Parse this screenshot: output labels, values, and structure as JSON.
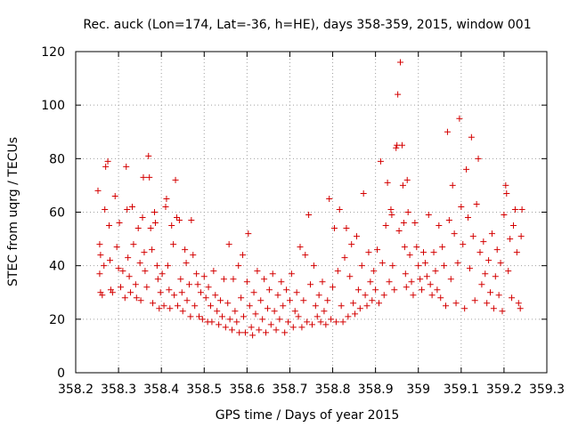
{
  "chart_data": {
    "type": "scatter",
    "title": "Rec. auck (Lon=174, Lat=-36, h=HE), days 358-359, 2015, window 001",
    "xlabel": "GPS time / Days of year 2015",
    "ylabel": "STEC from uqrg / TECUs",
    "xlim": [
      358.2,
      359.3
    ],
    "ylim": [
      0,
      120
    ],
    "xticks": [
      "358.2",
      "358.3",
      "358.4",
      "358.5",
      "358.6",
      "358.7",
      "358.8",
      "358.9",
      "359",
      "359.1",
      "359.2",
      "359.3"
    ],
    "yticks": [
      "0",
      "20",
      "40",
      "60",
      "80",
      "100",
      "120"
    ],
    "grid": true,
    "legend": "none",
    "marker": "+",
    "color": "#d40000",
    "series": [
      {
        "points": [
          [
            358.252,
            68
          ],
          [
            358.256,
            48
          ],
          [
            358.258,
            44
          ],
          [
            358.256,
            37
          ],
          [
            358.258,
            30
          ],
          [
            358.262,
            29
          ],
          [
            358.266,
            40
          ],
          [
            358.268,
            61
          ],
          [
            358.27,
            77
          ],
          [
            358.275,
            79
          ],
          [
            358.278,
            55
          ],
          [
            358.28,
            42
          ],
          [
            358.282,
            31
          ],
          [
            358.286,
            30
          ],
          [
            358.292,
            66
          ],
          [
            358.296,
            47
          ],
          [
            358.3,
            39
          ],
          [
            358.302,
            56
          ],
          [
            358.305,
            32
          ],
          [
            358.31,
            38
          ],
          [
            358.315,
            28
          ],
          [
            358.318,
            77
          ],
          [
            358.32,
            61
          ],
          [
            358.322,
            43
          ],
          [
            358.325,
            36
          ],
          [
            358.328,
            30
          ],
          [
            358.332,
            62
          ],
          [
            358.335,
            48
          ],
          [
            358.34,
            33
          ],
          [
            358.342,
            28
          ],
          [
            358.346,
            54
          ],
          [
            358.35,
            41
          ],
          [
            358.352,
            27
          ],
          [
            358.356,
            58
          ],
          [
            358.358,
            73
          ],
          [
            358.36,
            45
          ],
          [
            358.362,
            38
          ],
          [
            358.366,
            32
          ],
          [
            358.37,
            81
          ],
          [
            358.372,
            73
          ],
          [
            358.375,
            54
          ],
          [
            358.378,
            46
          ],
          [
            358.38,
            26
          ],
          [
            358.384,
            60
          ],
          [
            358.386,
            56
          ],
          [
            358.39,
            40
          ],
          [
            358.392,
            35
          ],
          [
            358.395,
            24
          ],
          [
            358.398,
            30
          ],
          [
            358.402,
            37
          ],
          [
            358.406,
            25
          ],
          [
            358.41,
            62
          ],
          [
            358.412,
            65
          ],
          [
            358.415,
            40
          ],
          [
            358.418,
            31
          ],
          [
            358.42,
            24
          ],
          [
            358.424,
            55
          ],
          [
            358.428,
            48
          ],
          [
            358.43,
            29
          ],
          [
            358.433,
            72
          ],
          [
            358.436,
            58
          ],
          [
            358.438,
            25
          ],
          [
            358.442,
            57
          ],
          [
            358.445,
            35
          ],
          [
            358.448,
            30
          ],
          [
            358.45,
            23
          ],
          [
            358.455,
            46
          ],
          [
            358.458,
            41
          ],
          [
            358.46,
            27
          ],
          [
            358.465,
            33
          ],
          [
            358.468,
            21
          ],
          [
            358.47,
            57
          ],
          [
            358.474,
            44
          ],
          [
            358.478,
            25
          ],
          [
            358.482,
            37
          ],
          [
            358.485,
            33
          ],
          [
            358.488,
            21
          ],
          [
            358.492,
            30
          ],
          [
            358.496,
            20
          ],
          [
            358.5,
            36
          ],
          [
            358.504,
            28
          ],
          [
            358.508,
            19
          ],
          [
            358.51,
            32
          ],
          [
            358.515,
            25
          ],
          [
            358.518,
            19
          ],
          [
            358.522,
            38
          ],
          [
            358.526,
            29
          ],
          [
            358.53,
            23
          ],
          [
            358.534,
            18
          ],
          [
            358.538,
            27
          ],
          [
            358.542,
            21
          ],
          [
            358.546,
            35
          ],
          [
            358.55,
            17
          ],
          [
            358.555,
            26
          ],
          [
            358.558,
            48
          ],
          [
            358.56,
            20
          ],
          [
            358.565,
            16
          ],
          [
            358.568,
            35
          ],
          [
            358.572,
            23
          ],
          [
            358.576,
            19
          ],
          [
            358.58,
            40
          ],
          [
            358.582,
            15
          ],
          [
            358.586,
            28
          ],
          [
            358.59,
            44
          ],
          [
            358.592,
            21
          ],
          [
            358.596,
            15
          ],
          [
            358.6,
            34
          ],
          [
            358.603,
            52
          ],
          [
            358.606,
            25
          ],
          [
            358.61,
            17
          ],
          [
            358.613,
            14
          ],
          [
            358.616,
            30
          ],
          [
            358.62,
            22
          ],
          [
            358.624,
            38
          ],
          [
            358.628,
            16
          ],
          [
            358.632,
            27
          ],
          [
            358.636,
            20
          ],
          [
            358.64,
            35
          ],
          [
            358.644,
            15
          ],
          [
            358.648,
            24
          ],
          [
            358.652,
            31
          ],
          [
            358.656,
            18
          ],
          [
            358.66,
            37
          ],
          [
            358.664,
            23
          ],
          [
            358.668,
            16
          ],
          [
            358.672,
            29
          ],
          [
            358.676,
            20
          ],
          [
            358.68,
            34
          ],
          [
            358.684,
            25
          ],
          [
            358.688,
            15
          ],
          [
            358.692,
            31
          ],
          [
            358.696,
            19
          ],
          [
            358.7,
            27
          ],
          [
            358.704,
            37
          ],
          [
            358.708,
            17
          ],
          [
            358.712,
            23
          ],
          [
            358.716,
            30
          ],
          [
            358.72,
            21
          ],
          [
            358.724,
            47
          ],
          [
            358.728,
            17
          ],
          [
            358.732,
            27
          ],
          [
            358.736,
            44
          ],
          [
            358.74,
            19
          ],
          [
            358.744,
            59
          ],
          [
            358.748,
            33
          ],
          [
            358.752,
            18
          ],
          [
            358.756,
            40
          ],
          [
            358.76,
            25
          ],
          [
            358.764,
            21
          ],
          [
            358.768,
            29
          ],
          [
            358.772,
            19
          ],
          [
            358.776,
            34
          ],
          [
            358.78,
            23
          ],
          [
            358.784,
            18
          ],
          [
            358.788,
            27
          ],
          [
            358.792,
            65
          ],
          [
            358.796,
            20
          ],
          [
            358.8,
            32
          ],
          [
            358.804,
            54
          ],
          [
            358.808,
            19
          ],
          [
            358.812,
            38
          ],
          [
            358.816,
            61
          ],
          [
            358.82,
            25
          ],
          [
            358.824,
            19
          ],
          [
            358.828,
            43
          ],
          [
            358.832,
            54
          ],
          [
            358.836,
            21
          ],
          [
            358.84,
            36
          ],
          [
            358.844,
            48
          ],
          [
            358.848,
            26
          ],
          [
            358.852,
            22
          ],
          [
            358.856,
            51
          ],
          [
            358.86,
            31
          ],
          [
            358.864,
            24
          ],
          [
            358.868,
            40
          ],
          [
            358.872,
            67
          ],
          [
            358.876,
            29
          ],
          [
            358.88,
            25
          ],
          [
            358.884,
            45
          ],
          [
            358.888,
            34
          ],
          [
            358.892,
            27
          ],
          [
            358.896,
            38
          ],
          [
            358.9,
            31
          ],
          [
            358.904,
            46
          ],
          [
            358.908,
            26
          ],
          [
            358.912,
            79
          ],
          [
            358.916,
            41
          ],
          [
            358.92,
            29
          ],
          [
            358.924,
            55
          ],
          [
            358.928,
            71
          ],
          [
            358.932,
            34
          ],
          [
            358.936,
            61
          ],
          [
            358.938,
            59
          ],
          [
            358.94,
            40
          ],
          [
            358.944,
            31
          ],
          [
            358.948,
            84
          ],
          [
            358.95,
            85
          ],
          [
            358.952,
            104
          ],
          [
            358.955,
            53
          ],
          [
            358.958,
            116
          ],
          [
            358.962,
            85
          ],
          [
            358.964,
            70
          ],
          [
            358.966,
            56
          ],
          [
            358.968,
            47
          ],
          [
            358.97,
            37
          ],
          [
            358.972,
            32
          ],
          [
            358.974,
            72
          ],
          [
            358.976,
            60
          ],
          [
            358.98,
            44
          ],
          [
            358.984,
            34
          ],
          [
            358.988,
            29
          ],
          [
            358.992,
            56
          ],
          [
            358.996,
            47
          ],
          [
            359.0,
            40
          ],
          [
            359.004,
            35
          ],
          [
            359.008,
            31
          ],
          [
            359.012,
            45
          ],
          [
            359.016,
            41
          ],
          [
            359.02,
            36
          ],
          [
            359.024,
            59
          ],
          [
            359.028,
            33
          ],
          [
            359.032,
            29
          ],
          [
            359.036,
            45
          ],
          [
            359.04,
            38
          ],
          [
            359.044,
            31
          ],
          [
            359.048,
            55
          ],
          [
            359.052,
            28
          ],
          [
            359.056,
            47
          ],
          [
            359.06,
            40
          ],
          [
            359.064,
            25
          ],
          [
            359.068,
            90
          ],
          [
            359.072,
            57
          ],
          [
            359.076,
            35
          ],
          [
            359.08,
            70
          ],
          [
            359.084,
            52
          ],
          [
            359.088,
            26
          ],
          [
            359.092,
            41
          ],
          [
            359.096,
            95
          ],
          [
            359.1,
            62
          ],
          [
            359.104,
            48
          ],
          [
            359.108,
            24
          ],
          [
            359.112,
            76
          ],
          [
            359.116,
            58
          ],
          [
            359.12,
            39
          ],
          [
            359.124,
            88
          ],
          [
            359.128,
            51
          ],
          [
            359.132,
            27
          ],
          [
            359.136,
            63
          ],
          [
            359.14,
            80
          ],
          [
            359.144,
            45
          ],
          [
            359.148,
            33
          ],
          [
            359.152,
            49
          ],
          [
            359.156,
            37
          ],
          [
            359.16,
            26
          ],
          [
            359.164,
            42
          ],
          [
            359.168,
            30
          ],
          [
            359.172,
            52
          ],
          [
            359.176,
            24
          ],
          [
            359.18,
            36
          ],
          [
            359.184,
            46
          ],
          [
            359.188,
            29
          ],
          [
            359.192,
            41
          ],
          [
            359.196,
            23
          ],
          [
            359.2,
            59
          ],
          [
            359.204,
            70
          ],
          [
            359.206,
            67
          ],
          [
            359.21,
            38
          ],
          [
            359.214,
            50
          ],
          [
            359.218,
            28
          ],
          [
            359.222,
            55
          ],
          [
            359.226,
            61
          ],
          [
            359.23,
            45
          ],
          [
            359.234,
            26
          ],
          [
            359.238,
            24
          ],
          [
            359.24,
            51
          ],
          [
            359.242,
            61
          ]
        ]
      }
    ]
  }
}
